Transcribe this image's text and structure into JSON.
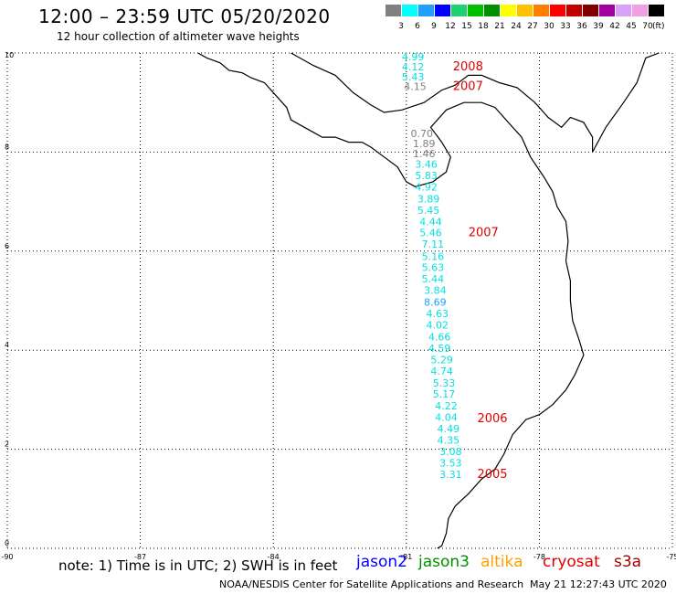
{
  "header": {
    "title": "12:00 – 23:59 UTC 05/20/2020",
    "subtitle": "12 hour collection of altimeter wave heights"
  },
  "color_scale": {
    "unit": "(ft)",
    "bins": [
      {
        "label": "3",
        "color": "#808080"
      },
      {
        "label": "6",
        "color": "#00ffff"
      },
      {
        "label": "9",
        "color": "#1ea0ff"
      },
      {
        "label": "12",
        "color": "#0000ff"
      },
      {
        "label": "15",
        "color": "#20d070"
      },
      {
        "label": "18",
        "color": "#00c000"
      },
      {
        "label": "21",
        "color": "#009000"
      },
      {
        "label": "24",
        "color": "#ffff00"
      },
      {
        "label": "27",
        "color": "#ffc000"
      },
      {
        "label": "30",
        "color": "#ff8000"
      },
      {
        "label": "33",
        "color": "#ff0000"
      },
      {
        "label": "36",
        "color": "#c00000"
      },
      {
        "label": "39",
        "color": "#800000"
      },
      {
        "label": "42",
        "color": "#a000a0"
      },
      {
        "label": "45",
        "color": "#d8a0f8"
      },
      {
        "label": "70",
        "color": "#f0a0e0"
      },
      {
        "label": "",
        "color": "#000000"
      }
    ]
  },
  "map": {
    "lon_range": [
      -90,
      -75
    ],
    "lat_range": [
      0,
      10
    ],
    "x_ticks": [
      "-90",
      "-87",
      "-84",
      "-81",
      "-78",
      "-75"
    ],
    "y_ticks": [
      "10",
      "8",
      "6",
      "4",
      "2",
      "0"
    ],
    "zero_label": "0"
  },
  "observations": [
    {
      "lat": 9.85,
      "lon": -80.85,
      "value": "4.99",
      "color": "#00e0e0"
    },
    {
      "lat": 9.65,
      "lon": -80.85,
      "value": "4.12",
      "color": "#00e0e0"
    },
    {
      "lat": 9.45,
      "lon": -80.85,
      "value": "5.43",
      "color": "#00e0e0"
    },
    {
      "lat": 9.25,
      "lon": -80.8,
      "value": "4.15",
      "color": "#808080"
    },
    {
      "lat": 8.3,
      "lon": -80.65,
      "value": "0.70",
      "color": "#808080"
    },
    {
      "lat": 8.1,
      "lon": -80.6,
      "value": "1.89",
      "color": "#808080"
    },
    {
      "lat": 7.9,
      "lon": -80.6,
      "value": "1.46",
      "color": "#808080"
    },
    {
      "lat": 7.68,
      "lon": -80.55,
      "value": "3.46",
      "color": "#00e0e0"
    },
    {
      "lat": 7.45,
      "lon": -80.55,
      "value": "5.83",
      "color": "#00e0e0"
    },
    {
      "lat": 7.22,
      "lon": -80.55,
      "value": "4.92",
      "color": "#00e0e0"
    },
    {
      "lat": 6.98,
      "lon": -80.5,
      "value": "3.89",
      "color": "#00e0e0"
    },
    {
      "lat": 6.75,
      "lon": -80.5,
      "value": "5.45",
      "color": "#00e0e0"
    },
    {
      "lat": 6.52,
      "lon": -80.45,
      "value": "4.44",
      "color": "#00e0e0"
    },
    {
      "lat": 6.3,
      "lon": -80.45,
      "value": "5.46",
      "color": "#00e0e0"
    },
    {
      "lat": 6.07,
      "lon": -80.4,
      "value": "7.11",
      "color": "#00e0e0"
    },
    {
      "lat": 5.82,
      "lon": -80.4,
      "value": "5.16",
      "color": "#00e0e0"
    },
    {
      "lat": 5.6,
      "lon": -80.4,
      "value": "5.63",
      "color": "#00e0e0"
    },
    {
      "lat": 5.37,
      "lon": -80.4,
      "value": "5.44",
      "color": "#00e0e0"
    },
    {
      "lat": 5.14,
      "lon": -80.35,
      "value": "3.84",
      "color": "#00e0e0"
    },
    {
      "lat": 4.9,
      "lon": -80.35,
      "value": "8.69",
      "color": "#1ea0ff"
    },
    {
      "lat": 4.67,
      "lon": -80.3,
      "value": "4.63",
      "color": "#00e0e0"
    },
    {
      "lat": 4.44,
      "lon": -80.3,
      "value": "4.02",
      "color": "#00e0e0"
    },
    {
      "lat": 4.2,
      "lon": -80.25,
      "value": "4.66",
      "color": "#00e0e0"
    },
    {
      "lat": 3.97,
      "lon": -80.25,
      "value": "4.59",
      "color": "#00e0e0"
    },
    {
      "lat": 3.74,
      "lon": -80.2,
      "value": "5.29",
      "color": "#00e0e0"
    },
    {
      "lat": 3.51,
      "lon": -80.2,
      "value": "4.74",
      "color": "#00e0e0"
    },
    {
      "lat": 3.27,
      "lon": -80.15,
      "value": "5.33",
      "color": "#00e0e0"
    },
    {
      "lat": 3.04,
      "lon": -80.15,
      "value": "5.17",
      "color": "#00e0e0"
    },
    {
      "lat": 2.8,
      "lon": -80.1,
      "value": "4.22",
      "color": "#00e0e0"
    },
    {
      "lat": 2.57,
      "lon": -80.1,
      "value": "4.04",
      "color": "#00e0e0"
    },
    {
      "lat": 2.34,
      "lon": -80.05,
      "value": "4.49",
      "color": "#00e0e0"
    },
    {
      "lat": 2.11,
      "lon": -80.05,
      "value": "4.35",
      "color": "#00e0e0"
    },
    {
      "lat": 1.88,
      "lon": -80.0,
      "value": "3.08",
      "color": "#00e0e0"
    },
    {
      "lat": 1.65,
      "lon": -80.0,
      "value": "3.53",
      "color": "#00e0e0"
    },
    {
      "lat": 1.42,
      "lon": -80.0,
      "value": "3.31",
      "color": "#00e0e0"
    }
  ],
  "time_labels": [
    {
      "lat": 9.65,
      "lon": -79.95,
      "text": "2008",
      "color": "#e00000"
    },
    {
      "lat": 9.25,
      "lon": -79.95,
      "text": "2007",
      "color": "#e00000"
    },
    {
      "lat": 6.3,
      "lon": -79.6,
      "text": "2007",
      "color": "#e00000"
    },
    {
      "lat": 2.55,
      "lon": -79.4,
      "text": "2006",
      "color": "#e00000"
    },
    {
      "lat": 1.42,
      "lon": -79.4,
      "text": "2005",
      "color": "#e00000"
    }
  ],
  "footer": {
    "note": "note: 1) Time is in UTC; 2) SWH is in feet",
    "satellites": [
      {
        "name": "jason2",
        "color": "#0000ff"
      },
      {
        "name": "jason3",
        "color": "#009000"
      },
      {
        "name": "altika",
        "color": "#ffa000"
      },
      {
        "name": "cryosat",
        "color": "#e00000"
      },
      {
        "name": "s3a",
        "color": "#a00000"
      }
    ],
    "credit": "NOAA/NESDIS Center for Satellite Applications and Research",
    "timestamp": "May 21 12:27:43 UTC 2020"
  }
}
